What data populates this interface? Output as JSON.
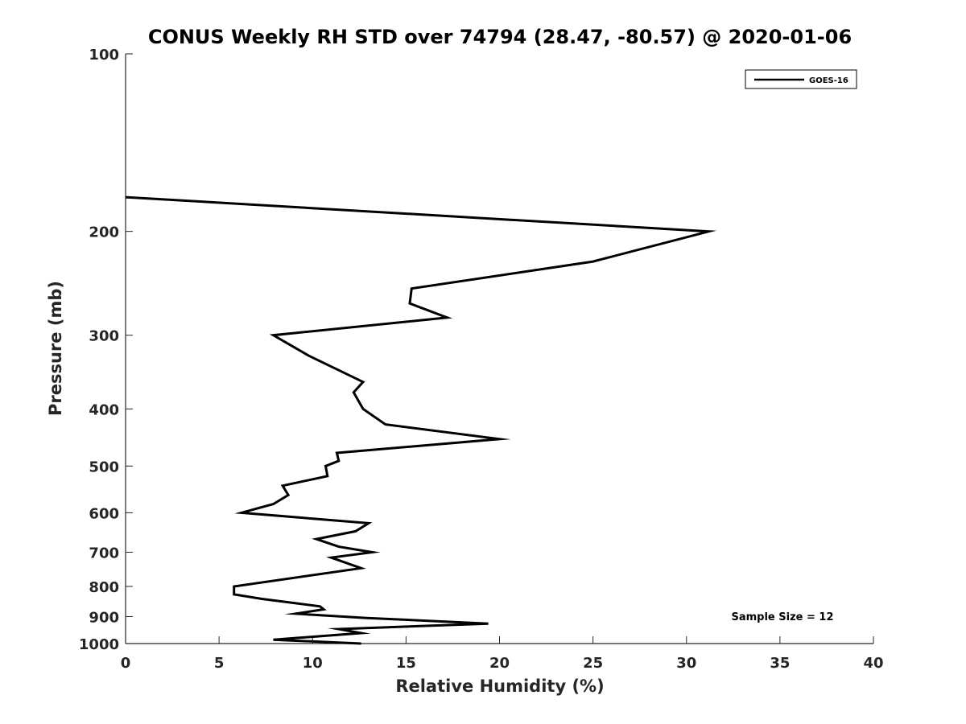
{
  "chart_data": {
    "type": "line",
    "title": "CONUS Weekly RH STD over 74794 (28.47, -80.57) @ 2020-01-06",
    "xlabel": "Relative Humidity (%)",
    "ylabel": "Pressure (mb)",
    "xlim": [
      0,
      40
    ],
    "ylim": [
      100,
      1000
    ],
    "y_scale": "log",
    "y_reversed": true,
    "x_ticks": [
      "0",
      "5",
      "10",
      "15",
      "20",
      "25",
      "30",
      "35",
      "40"
    ],
    "y_ticks": [
      "100",
      "200",
      "300",
      "400",
      "500",
      "600",
      "700",
      "800",
      "900",
      "1000"
    ],
    "legend_position": "top-right",
    "annotation": "Sample Size = 12",
    "series": [
      {
        "name": "GOES-16",
        "color": "#000000",
        "points": [
          {
            "x": 0.0,
            "y": 175
          },
          {
            "x": 31.2,
            "y": 200
          },
          {
            "x": 25.0,
            "y": 225
          },
          {
            "x": 15.3,
            "y": 250
          },
          {
            "x": 15.2,
            "y": 265
          },
          {
            "x": 17.2,
            "y": 280
          },
          {
            "x": 7.9,
            "y": 300
          },
          {
            "x": 9.8,
            "y": 325
          },
          {
            "x": 12.7,
            "y": 360
          },
          {
            "x": 12.2,
            "y": 375
          },
          {
            "x": 12.7,
            "y": 400
          },
          {
            "x": 13.9,
            "y": 425
          },
          {
            "x": 20.0,
            "y": 450
          },
          {
            "x": 11.3,
            "y": 475
          },
          {
            "x": 11.4,
            "y": 490
          },
          {
            "x": 10.7,
            "y": 500
          },
          {
            "x": 10.8,
            "y": 520
          },
          {
            "x": 8.4,
            "y": 540
          },
          {
            "x": 8.7,
            "y": 560
          },
          {
            "x": 7.9,
            "y": 580
          },
          {
            "x": 6.2,
            "y": 600
          },
          {
            "x": 13.0,
            "y": 625
          },
          {
            "x": 12.3,
            "y": 645
          },
          {
            "x": 10.2,
            "y": 665
          },
          {
            "x": 11.4,
            "y": 685
          },
          {
            "x": 13.2,
            "y": 700
          },
          {
            "x": 11.0,
            "y": 715
          },
          {
            "x": 12.6,
            "y": 745
          },
          {
            "x": 5.8,
            "y": 800
          },
          {
            "x": 5.8,
            "y": 825
          },
          {
            "x": 7.3,
            "y": 840
          },
          {
            "x": 10.4,
            "y": 865
          },
          {
            "x": 10.6,
            "y": 875
          },
          {
            "x": 9.1,
            "y": 890
          },
          {
            "x": 12.9,
            "y": 905
          },
          {
            "x": 19.4,
            "y": 925
          },
          {
            "x": 11.4,
            "y": 945
          },
          {
            "x": 12.6,
            "y": 960
          },
          {
            "x": 7.9,
            "y": 985
          },
          {
            "x": 12.6,
            "y": 1000
          }
        ]
      }
    ]
  }
}
